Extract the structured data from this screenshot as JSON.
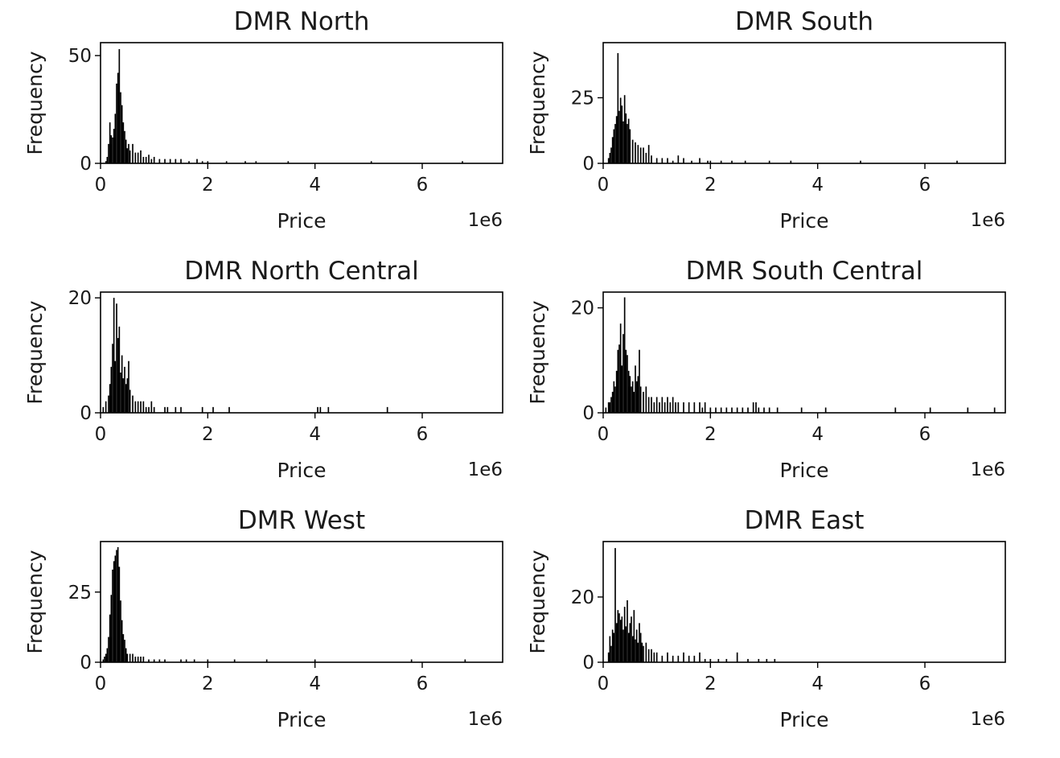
{
  "chart_data": [
    {
      "type": "bar",
      "title": "DMR North",
      "xlabel": "Price",
      "ylabel": "Frequency",
      "x_offset_label": "1e6",
      "xlim": [
        0,
        7.5
      ],
      "ylim": [
        0,
        56
      ],
      "x_ticks": [
        0,
        2,
        4,
        6
      ],
      "y_ticks": [
        0,
        50
      ],
      "bin_width": 0.025,
      "x": [
        0.1,
        0.125,
        0.15,
        0.175,
        0.2,
        0.225,
        0.25,
        0.275,
        0.3,
        0.325,
        0.35,
        0.375,
        0.4,
        0.425,
        0.45,
        0.475,
        0.5,
        0.525,
        0.55,
        0.6,
        0.65,
        0.7,
        0.75,
        0.8,
        0.85,
        0.9,
        0.95,
        1.0,
        1.1,
        1.2,
        1.3,
        1.4,
        1.5,
        1.65,
        1.8,
        1.9,
        2.0,
        2.35,
        2.7,
        2.9,
        3.5,
        5.05,
        6.75
      ],
      "values": [
        1,
        3,
        9,
        19,
        13,
        12,
        16,
        23,
        37,
        42,
        53,
        33,
        27,
        19,
        15,
        11,
        7,
        9,
        6,
        9,
        5,
        5,
        6,
        3,
        3,
        4,
        2,
        3,
        2,
        2,
        2,
        2,
        2,
        1,
        2,
        1,
        1,
        1,
        1,
        1,
        1,
        1,
        1
      ]
    },
    {
      "type": "bar",
      "title": "DMR South",
      "xlabel": "Price",
      "ylabel": "Frequency",
      "x_offset_label": "1e6",
      "xlim": [
        0,
        7.5
      ],
      "ylim": [
        0,
        46
      ],
      "x_ticks": [
        0,
        2,
        4,
        6
      ],
      "y_ticks": [
        0,
        25
      ],
      "bin_width": 0.025,
      "x": [
        0.1,
        0.125,
        0.15,
        0.175,
        0.2,
        0.225,
        0.25,
        0.275,
        0.3,
        0.325,
        0.35,
        0.375,
        0.4,
        0.425,
        0.45,
        0.475,
        0.5,
        0.55,
        0.6,
        0.65,
        0.7,
        0.75,
        0.8,
        0.85,
        0.9,
        1.0,
        1.1,
        1.2,
        1.3,
        1.4,
        1.5,
        1.65,
        1.8,
        1.95,
        2.0,
        2.2,
        2.4,
        2.65,
        3.1,
        3.5,
        4.8,
        6.6
      ],
      "values": [
        2,
        4,
        6,
        10,
        13,
        15,
        18,
        42,
        20,
        25,
        22,
        16,
        26,
        19,
        15,
        17,
        13,
        9,
        8,
        7,
        6,
        6,
        4,
        7,
        3,
        2,
        2,
        2,
        1,
        3,
        2,
        1,
        2,
        1,
        1,
        1,
        1,
        1,
        1,
        1,
        1,
        1
      ]
    },
    {
      "type": "bar",
      "title": "DMR North Central",
      "xlabel": "Price",
      "ylabel": "Frequency",
      "x_offset_label": "1e6",
      "xlim": [
        0,
        7.5
      ],
      "ylim": [
        0,
        21
      ],
      "x_ticks": [
        0,
        2,
        4,
        6
      ],
      "y_ticks": [
        0,
        20
      ],
      "bin_width": 0.025,
      "x": [
        0.05,
        0.1,
        0.15,
        0.175,
        0.2,
        0.225,
        0.25,
        0.275,
        0.3,
        0.325,
        0.35,
        0.375,
        0.4,
        0.425,
        0.45,
        0.475,
        0.5,
        0.525,
        0.55,
        0.6,
        0.65,
        0.7,
        0.75,
        0.8,
        0.85,
        0.9,
        0.95,
        1.0,
        1.2,
        1.25,
        1.4,
        1.5,
        1.9,
        2.1,
        2.4,
        4.05,
        4.1,
        4.25,
        5.35
      ],
      "values": [
        1,
        2,
        3,
        5,
        8,
        12,
        20,
        9,
        19,
        13,
        15,
        7,
        10,
        6,
        8,
        5,
        6,
        9,
        4,
        3,
        2,
        2,
        2,
        2,
        1,
        1,
        2,
        1,
        1,
        1,
        1,
        1,
        1,
        1,
        1,
        1,
        1,
        1,
        1
      ]
    },
    {
      "type": "bar",
      "title": "DMR South Central",
      "xlabel": "Price",
      "ylabel": "Frequency",
      "x_offset_label": "1e6",
      "xlim": [
        0,
        7.5
      ],
      "ylim": [
        0,
        23
      ],
      "x_ticks": [
        0,
        2,
        4,
        6
      ],
      "y_ticks": [
        0,
        20
      ],
      "bin_width": 0.025,
      "x": [
        0.05,
        0.1,
        0.125,
        0.15,
        0.175,
        0.2,
        0.225,
        0.25,
        0.275,
        0.3,
        0.325,
        0.35,
        0.375,
        0.4,
        0.425,
        0.45,
        0.475,
        0.5,
        0.525,
        0.55,
        0.575,
        0.6,
        0.625,
        0.65,
        0.675,
        0.7,
        0.75,
        0.8,
        0.85,
        0.9,
        0.95,
        1.0,
        1.05,
        1.1,
        1.15,
        1.2,
        1.25,
        1.3,
        1.35,
        1.4,
        1.5,
        1.6,
        1.7,
        1.8,
        1.85,
        1.9,
        2.0,
        2.1,
        2.2,
        2.3,
        2.4,
        2.5,
        2.6,
        2.7,
        2.8,
        2.85,
        2.9,
        3.0,
        3.1,
        3.25,
        3.7,
        4.15,
        5.45,
        6.1,
        6.8,
        7.3
      ],
      "values": [
        1,
        2,
        2,
        3,
        4,
        6,
        5,
        8,
        12,
        13,
        17,
        9,
        15,
        22,
        12,
        11,
        8,
        7,
        5,
        6,
        4,
        9,
        6,
        7,
        12,
        5,
        4,
        5,
        3,
        3,
        2,
        3,
        2,
        3,
        2,
        3,
        2,
        3,
        2,
        2,
        2,
        2,
        2,
        2,
        1,
        2,
        1,
        1,
        1,
        1,
        1,
        1,
        1,
        1,
        2,
        2,
        1,
        1,
        1,
        1,
        1,
        1,
        1,
        1,
        1,
        1
      ]
    },
    {
      "type": "bar",
      "title": "DMR West",
      "xlabel": "Price",
      "ylabel": "Frequency",
      "x_offset_label": "1e6",
      "xlim": [
        0,
        7.5
      ],
      "ylim": [
        0,
        43
      ],
      "x_ticks": [
        0,
        2,
        4,
        6
      ],
      "y_ticks": [
        0,
        25
      ],
      "bin_width": 0.025,
      "x": [
        0.05,
        0.075,
        0.1,
        0.125,
        0.15,
        0.175,
        0.2,
        0.225,
        0.25,
        0.275,
        0.3,
        0.325,
        0.35,
        0.375,
        0.4,
        0.425,
        0.45,
        0.475,
        0.5,
        0.55,
        0.6,
        0.65,
        0.7,
        0.75,
        0.8,
        0.9,
        1.0,
        1.1,
        1.2,
        1.5,
        1.6,
        1.75,
        2.0,
        2.5,
        3.1,
        4.0,
        5.8,
        6.8
      ],
      "values": [
        1,
        2,
        3,
        5,
        9,
        17,
        24,
        33,
        36,
        38,
        40,
        41,
        34,
        22,
        15,
        10,
        8,
        5,
        3,
        3,
        3,
        2,
        2,
        2,
        2,
        1,
        1,
        1,
        1,
        1,
        1,
        1,
        1,
        1,
        1,
        1,
        1,
        1
      ]
    },
    {
      "type": "bar",
      "title": "DMR East",
      "xlabel": "Price",
      "ylabel": "Frequency",
      "x_offset_label": "1e6",
      "xlim": [
        0,
        7.5
      ],
      "ylim": [
        0,
        37
      ],
      "x_ticks": [
        0,
        2,
        4,
        6
      ],
      "y_ticks": [
        0,
        20
      ],
      "bin_width": 0.025,
      "x": [
        0.1,
        0.125,
        0.15,
        0.175,
        0.2,
        0.225,
        0.25,
        0.275,
        0.3,
        0.325,
        0.35,
        0.375,
        0.4,
        0.425,
        0.45,
        0.475,
        0.5,
        0.525,
        0.55,
        0.575,
        0.6,
        0.625,
        0.65,
        0.675,
        0.7,
        0.725,
        0.75,
        0.8,
        0.85,
        0.9,
        0.95,
        1.0,
        1.1,
        1.2,
        1.3,
        1.4,
        1.5,
        1.6,
        1.7,
        1.8,
        1.9,
        2.0,
        2.15,
        2.3,
        2.5,
        2.7,
        2.9,
        3.05,
        3.2
      ],
      "values": [
        3,
        8,
        5,
        10,
        9,
        35,
        12,
        16,
        15,
        13,
        14,
        10,
        17,
        11,
        19,
        9,
        12,
        14,
        8,
        16,
        7,
        10,
        6,
        12,
        9,
        6,
        5,
        6,
        4,
        4,
        3,
        3,
        2,
        3,
        2,
        2,
        3,
        2,
        2,
        3,
        1,
        1,
        1,
        1,
        3,
        1,
        1,
        1,
        1
      ]
    }
  ]
}
